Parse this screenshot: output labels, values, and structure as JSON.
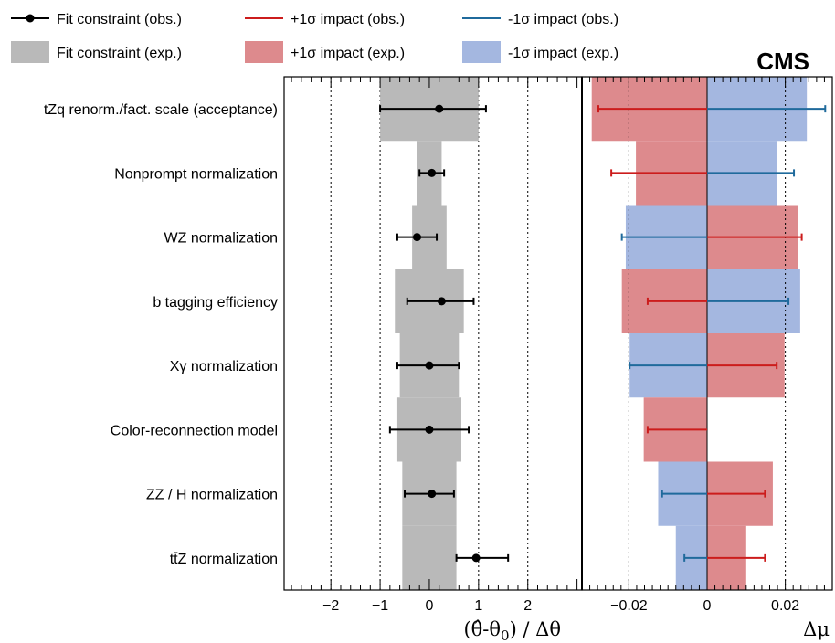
{
  "chart_data": {
    "type": "impact-plot",
    "experiment": "CMS",
    "legend": [
      {
        "label": "Fit constraint (obs.)",
        "kind": "marker",
        "color": "#000000"
      },
      {
        "label": "+1σ impact (obs.)",
        "kind": "line",
        "color": "#cc1c1c"
      },
      {
        "label": "-1σ impact (obs.)",
        "kind": "line",
        "color": "#1f6a9c"
      },
      {
        "label": "Fit constraint (exp.)",
        "kind": "box",
        "color": "#b9b9b9"
      },
      {
        "label": "+1σ impact (exp.)",
        "kind": "box",
        "color": "#dd8a8d"
      },
      {
        "label": "-1σ impact (exp.)",
        "kind": "box",
        "color": "#a4b7e0"
      }
    ],
    "colors": {
      "constraint_exp": "#b9b9b9",
      "plus_exp": "#dd8a8d",
      "minus_exp": "#a4b7e0",
      "plus_obs": "#cc1c1c",
      "minus_obs": "#1f6a9c",
      "constraint_obs": "#000000"
    },
    "parameters": [
      {
        "name": "tZq renorm./fact. scale (acceptance)",
        "pull": 0.2,
        "pull_lo": -1.0,
        "pull_hi": 1.15,
        "exp_lo": -1.0,
        "exp_hi": 1.0,
        "plus_exp": -0.0295,
        "minus_exp": 0.0255,
        "plus_obs": -0.0278,
        "minus_obs": 0.0302
      },
      {
        "name": "Nonprompt normalization",
        "pull": 0.05,
        "pull_lo": -0.2,
        "pull_hi": 0.3,
        "exp_lo": -0.25,
        "exp_hi": 0.25,
        "plus_exp": -0.0182,
        "minus_exp": 0.0178,
        "plus_obs": -0.0245,
        "minus_obs": 0.0222
      },
      {
        "name": "WZ normalization",
        "pull": -0.25,
        "pull_lo": -0.65,
        "pull_hi": 0.15,
        "exp_lo": -0.35,
        "exp_hi": 0.35,
        "plus_exp": 0.0232,
        "minus_exp": -0.0208,
        "plus_obs": 0.0242,
        "minus_obs": -0.0218
      },
      {
        "name": "b tagging efficiency",
        "pull": 0.25,
        "pull_lo": -0.45,
        "pull_hi": 0.9,
        "exp_lo": -0.7,
        "exp_hi": 0.7,
        "plus_exp": -0.0218,
        "minus_exp": 0.0238,
        "plus_obs": -0.0152,
        "minus_obs": 0.0208
      },
      {
        "name": "Xγ normalization",
        "pull": 0.0,
        "pull_lo": -0.65,
        "pull_hi": 0.6,
        "exp_lo": -0.6,
        "exp_hi": 0.6,
        "plus_exp": 0.0198,
        "minus_exp": -0.0198,
        "plus_obs": 0.0178,
        "minus_obs": -0.0198
      },
      {
        "name": "Color-reconnection model",
        "pull": 0.0,
        "pull_lo": -0.8,
        "pull_hi": 0.8,
        "exp_lo": -0.65,
        "exp_hi": 0.65,
        "plus_exp": -0.0162,
        "minus_exp": 0.0,
        "plus_obs": -0.0152,
        "minus_obs": 0.0
      },
      {
        "name": "ZZ / H normalization",
        "pull": 0.05,
        "pull_lo": -0.5,
        "pull_hi": 0.5,
        "exp_lo": -0.55,
        "exp_hi": 0.55,
        "plus_exp": 0.0168,
        "minus_exp": -0.0125,
        "plus_obs": 0.0148,
        "minus_obs": -0.0115
      },
      {
        "name": "tt̄Z normalization",
        "pull": 0.95,
        "pull_lo": 0.55,
        "pull_hi": 1.6,
        "exp_lo": -0.55,
        "exp_hi": 0.55,
        "plus_exp": 0.01,
        "minus_exp": -0.008,
        "plus_obs": 0.0148,
        "minus_obs": -0.0058
      }
    ],
    "left_axis": {
      "label": "(θ̂-θ0) / Δθ",
      "xlim": [
        -2.95,
        3.1
      ],
      "ticks": [
        -2,
        -1,
        0,
        1,
        2
      ],
      "tick_labels": [
        "−2",
        "−1",
        "0",
        "1",
        "2"
      ],
      "dotted_grid": [
        -2,
        -1,
        1,
        2
      ]
    },
    "right_axis": {
      "label": "Δμ",
      "xlim": [
        -0.032,
        0.032
      ],
      "ticks": [
        -0.02,
        0,
        0.02
      ],
      "tick_labels": [
        "−0.02",
        "0",
        "0.02"
      ],
      "dotted_grid": [
        -0.02,
        0.02
      ]
    }
  }
}
